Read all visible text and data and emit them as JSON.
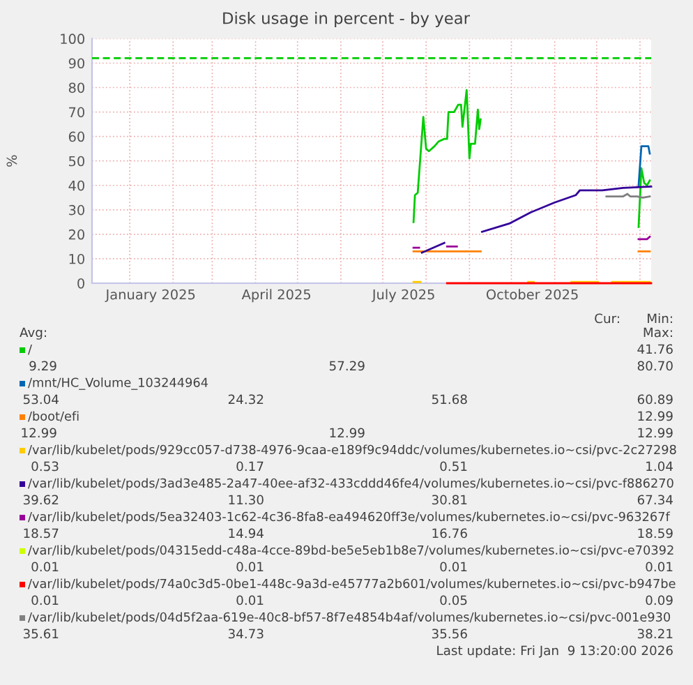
{
  "chart_data": {
    "type": "line",
    "title": "Disk usage in percent - by year",
    "ylabel": "%",
    "xlim": [
      "2024-12-05",
      "2026-01-09"
    ],
    "xticks": [
      {
        "value": "2025-01-01",
        "label": null
      },
      {
        "value": "2025-01-16",
        "label": "January 2025"
      },
      {
        "value": "2025-02-01",
        "label": null
      },
      {
        "value": "2025-03-01",
        "label": null
      },
      {
        "value": "2025-04-01",
        "label": null
      },
      {
        "value": "2025-04-16",
        "label": "April 2025"
      },
      {
        "value": "2025-05-01",
        "label": null
      },
      {
        "value": "2025-06-01",
        "label": null
      },
      {
        "value": "2025-07-01",
        "label": null
      },
      {
        "value": "2025-07-16",
        "label": "July 2025"
      },
      {
        "value": "2025-08-01",
        "label": null
      },
      {
        "value": "2025-09-01",
        "label": null
      },
      {
        "value": "2025-10-01",
        "label": null
      },
      {
        "value": "2025-10-16",
        "label": "October 2025"
      },
      {
        "value": "2025-11-01",
        "label": null
      },
      {
        "value": "2025-12-01",
        "label": null
      },
      {
        "value": "2026-01-01",
        "label": null
      }
    ],
    "ylim": [
      0,
      100
    ],
    "yticks": [
      0,
      10,
      20,
      30,
      40,
      50,
      60,
      70,
      80,
      90,
      100
    ],
    "grid": true,
    "legend": "bottom",
    "line_style": "solid",
    "ref_lines": [
      {
        "axis": "y",
        "value": 92,
        "color": "#00cc00",
        "line_style": "dashed"
      }
    ],
    "series": [
      {
        "name": "/",
        "color": "#00cc00",
        "x": [
          "2025-07-23",
          "2025-07-24",
          "2025-07-26",
          "2025-07-30",
          "2025-08-01",
          "2025-08-03",
          "2025-08-07",
          "2025-08-10",
          "2025-08-14",
          "2025-08-16",
          "2025-08-17",
          "2025-08-21",
          "2025-08-24",
          "2025-08-26",
          "2025-08-27",
          "2025-08-30",
          "2025-09-01",
          "2025-09-02",
          "2025-09-05",
          "2025-09-07",
          "2025-09-08",
          "2025-09-09",
          "2025-10-01",
          "2025-12-31",
          "2026-01-02",
          "2026-01-04",
          "2026-01-06",
          "2026-01-08"
        ],
        "values": [
          25,
          36,
          37,
          68,
          55,
          54,
          56,
          58,
          59,
          59,
          70,
          70,
          73,
          73,
          64,
          79,
          51,
          57,
          57,
          71,
          63,
          67,
          null,
          23,
          47,
          41,
          40,
          42
        ]
      },
      {
        "name": "/mnt/HC_Volume_103244964",
        "color": "#0066b3",
        "x": [
          "2025-12-31",
          "2026-01-02",
          "2026-01-07",
          "2026-01-08"
        ],
        "values": [
          40,
          56,
          56,
          53
        ]
      },
      {
        "name": "/boot/efi",
        "color": "#ff8000",
        "x": [
          "2025-07-23",
          "2025-09-09",
          "2025-10-01",
          "2025-12-31",
          "2026-01-08"
        ],
        "values": [
          13,
          13,
          null,
          13,
          13
        ]
      },
      {
        "name": "/var/lib/kubelet/pods/929cc057-d738-4976-9caa-e189f9c94ddc/volumes/kubernetes.io~csi/pvc-2c27298",
        "color": "#ffcc00",
        "x": [
          "2025-07-23",
          "2025-07-28",
          "2025-08-05",
          "2025-10-13",
          "2025-10-17",
          "2025-10-25",
          "2025-11-13",
          "2025-12-02",
          "2025-12-07",
          "2025-12-12",
          "2026-01-08"
        ],
        "values": [
          0.5,
          0.5,
          null,
          0.5,
          0.5,
          null,
          0.5,
          0.5,
          null,
          0.5,
          0.5
        ]
      },
      {
        "name": "/var/lib/kubelet/pods/3ad3e485-2a47-40ee-af32-433cddd46fe4/volumes/kubernetes.io~csi/pvc-f886270",
        "color": "#330099",
        "x": [
          "2025-07-29",
          "2025-08-14",
          "2025-08-25",
          "2025-09-10",
          "2025-09-30",
          "2025-10-15",
          "2025-11-01",
          "2025-11-16",
          "2025-11-19",
          "2025-12-05",
          "2025-12-20",
          "2026-01-09"
        ],
        "values": [
          12.5,
          16.5,
          null,
          21,
          24.5,
          29,
          33,
          36,
          38,
          38,
          39,
          39.5
        ]
      },
      {
        "name": "/var/lib/kubelet/pods/5ea32403-1c62-4c36-8fa8-ea494620ff3e/volumes/kubernetes.io~csi/pvc-963267f",
        "color": "#990099",
        "x": [
          "2025-07-23",
          "2025-07-27",
          "2025-08-05",
          "2025-08-16",
          "2025-08-23",
          "2025-10-01",
          "2025-12-31",
          "2026-01-06",
          "2026-01-08"
        ],
        "values": [
          14.5,
          14.5,
          null,
          15,
          15,
          null,
          18,
          18,
          19
        ]
      },
      {
        "name": "/var/lib/kubelet/pods/04315edd-c48a-4cce-89bd-be5e5eb1b8e7/volumes/kubernetes.io~csi/pvc-e70392",
        "color": "#ccff00"
      },
      {
        "name": "/var/lib/kubelet/pods/74a0c3d5-0be1-448c-9a3d-e45777a2b601/volumes/kubernetes.io~csi/pvc-b947be",
        "color": "#ff0000",
        "x": [
          "2025-08-16",
          "2026-01-09"
        ],
        "values": [
          0,
          0
        ]
      },
      {
        "name": "/var/lib/kubelet/pods/04d5f2aa-619e-40c8-bf57-8f7e4854b4af/volumes/kubernetes.io~csi/pvc-001e930",
        "color": "#808080",
        "x": [
          "2025-12-08",
          "2025-12-20",
          "2025-12-23",
          "2025-12-25",
          "2025-12-30",
          "2026-01-03",
          "2026-01-08"
        ],
        "values": [
          35.5,
          35.5,
          36.5,
          35.5,
          35.5,
          35,
          35.5
        ]
      }
    ],
    "annotations": [
      "Cur:",
      "Min:",
      "Avg:",
      "Max:",
      "41.76",
      "9.29",
      "57.29",
      "80.70",
      "53.04",
      "24.32",
      "51.68",
      "60.89",
      "12.99",
      "12.99",
      "12.99",
      "12.99",
      "0.53",
      "0.17",
      "0.51",
      "1.04",
      "39.62",
      "11.30",
      "30.81",
      "67.34",
      "18.57",
      "14.94",
      "16.76",
      "18.59",
      "0.01",
      "0.01",
      "0.01",
      "0.01",
      "0.01",
      "0.01",
      "0.05",
      "0.09",
      "35.61",
      "34.73",
      "35.56",
      "38.21",
      "Last update: Fri Jan  9 13:20:00 2026"
    ]
  }
}
